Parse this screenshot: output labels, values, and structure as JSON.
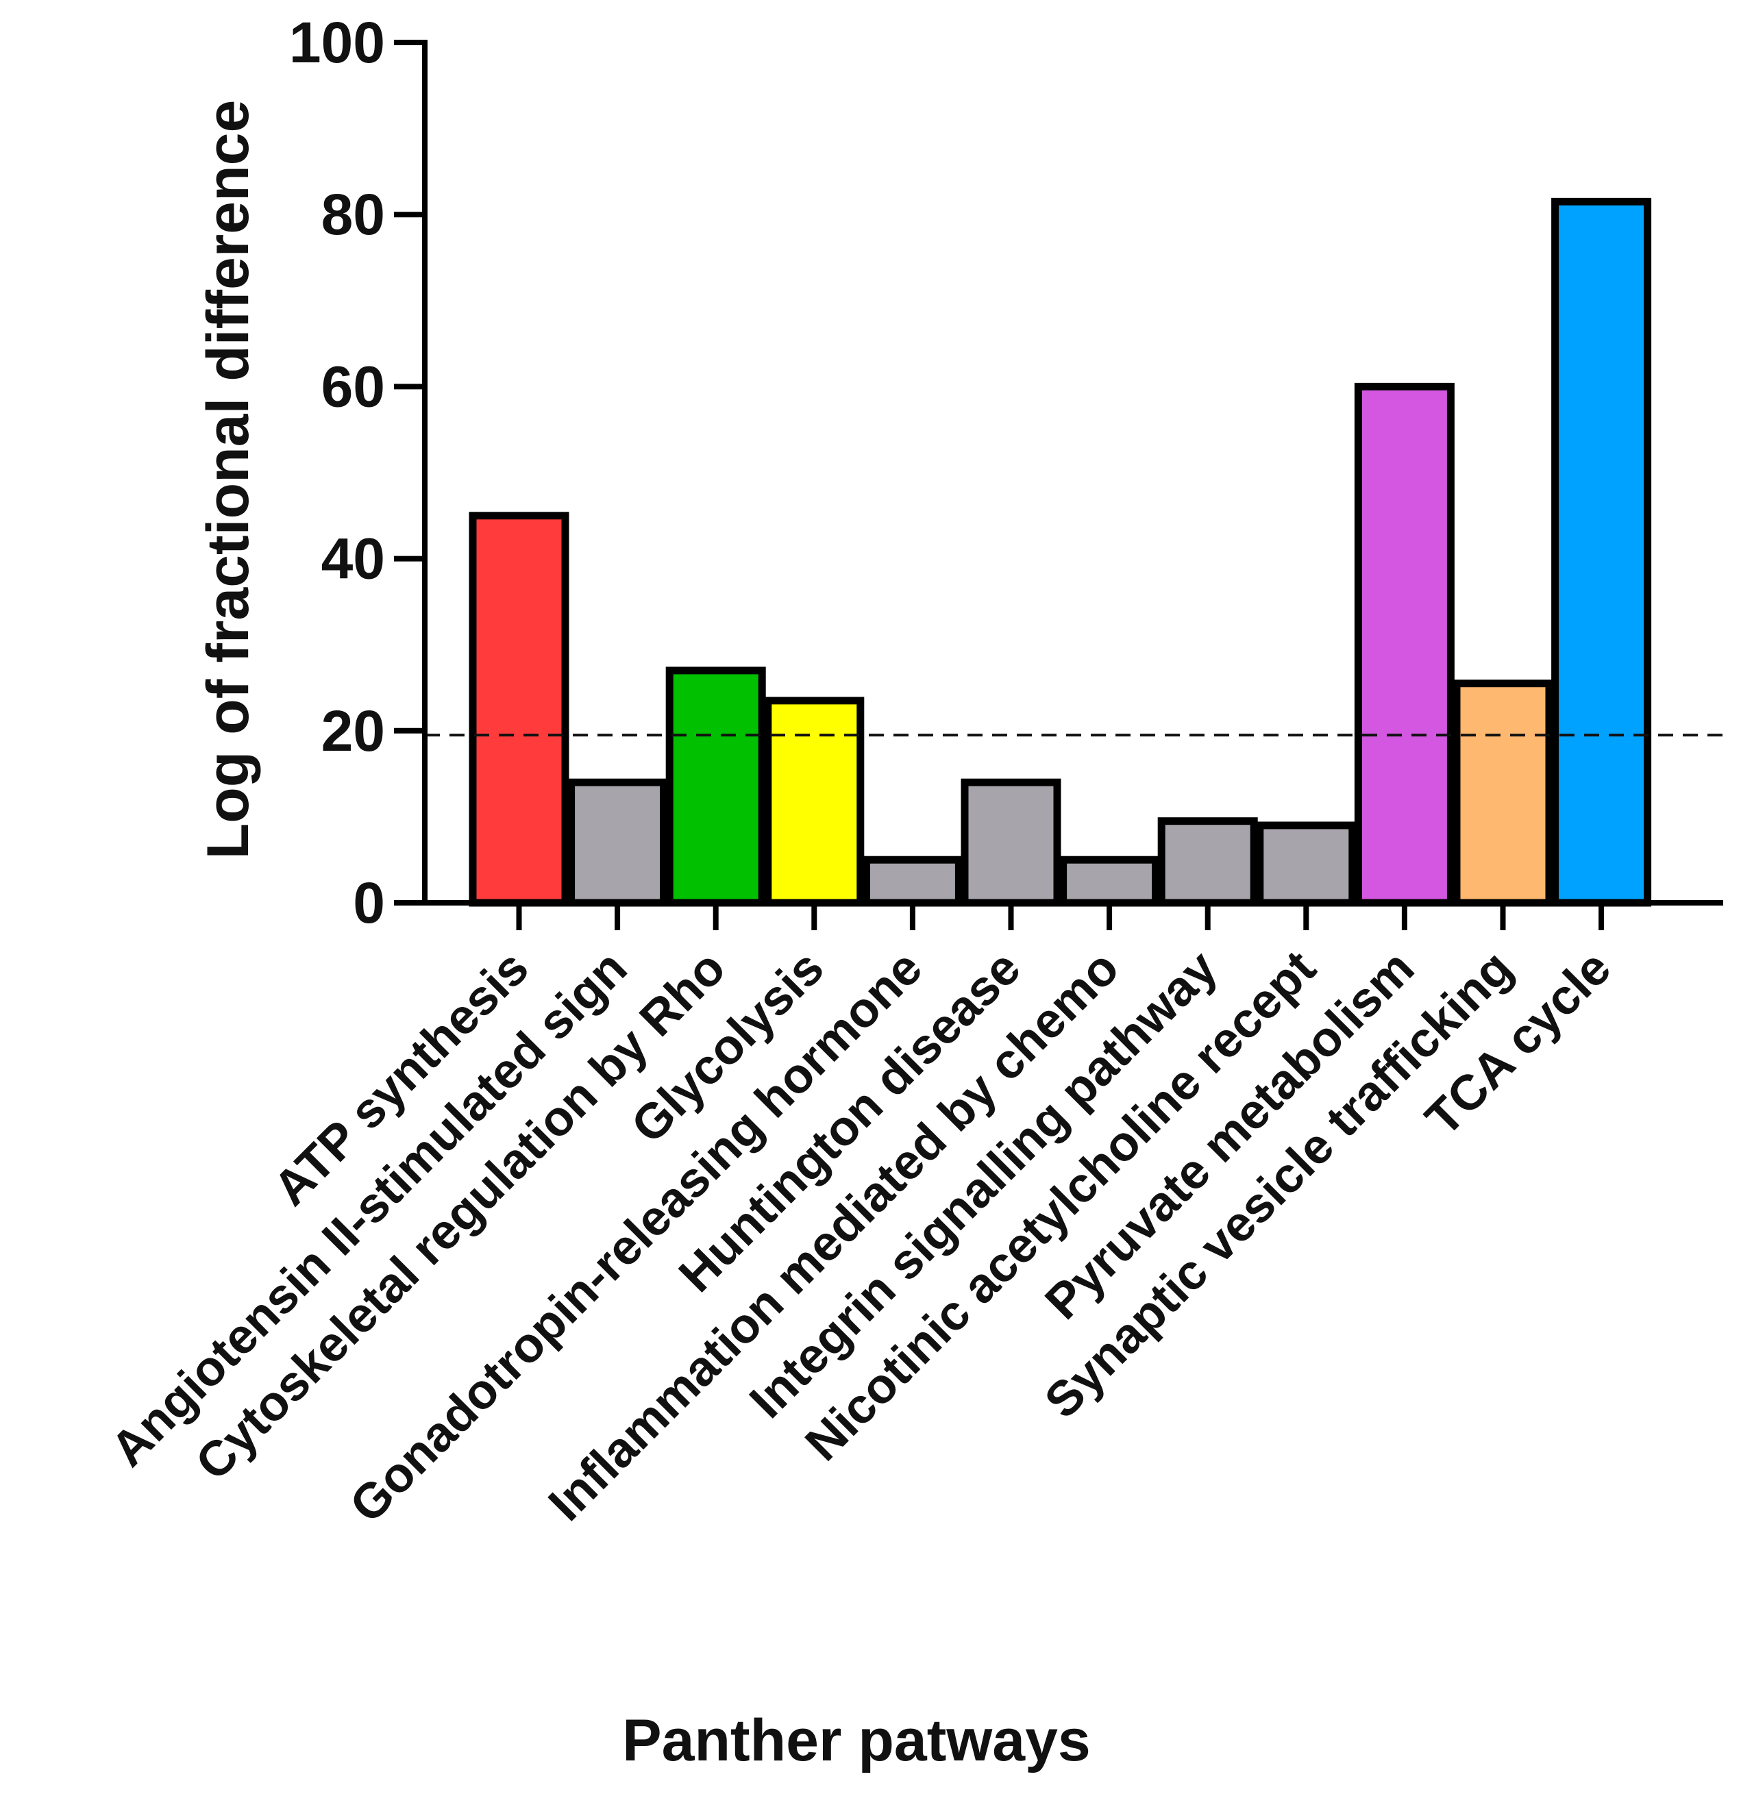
{
  "chart_data": {
    "type": "bar",
    "title": "",
    "xlabel": "Panther patways",
    "ylabel": "Log of fractional difference",
    "ylim": [
      0,
      100
    ],
    "yticks": [
      0,
      20,
      40,
      60,
      80,
      100
    ],
    "threshold": 19.5,
    "categories": [
      "ATP synthesis",
      "Angiotensin II-stimulated sign",
      "Cytoskeletal regulation by Rho",
      "Glycolysis",
      "Gonadotropin-releasing hormone",
      "Huntington disease",
      "Inflammation mediated by chemo",
      "Integrin signalling pathway",
      "Nicotinic acetylcholine recept",
      "Pyruvate metabolism",
      "Synaptic vesicle trafficking",
      "TCA cycle"
    ],
    "values": [
      45,
      14,
      27,
      23.5,
      5,
      14,
      5,
      9.5,
      9,
      60,
      25.5,
      81.5
    ],
    "colors": [
      "#ff3b3b",
      "#a7a5ab",
      "#00c000",
      "#ffff00",
      "#a7a5ab",
      "#a7a5ab",
      "#a7a5ab",
      "#a7a5ab",
      "#a7a5ab",
      "#d357e0",
      "#ffb870",
      "#00a2ff"
    ],
    "legend": "none",
    "grid": false
  }
}
